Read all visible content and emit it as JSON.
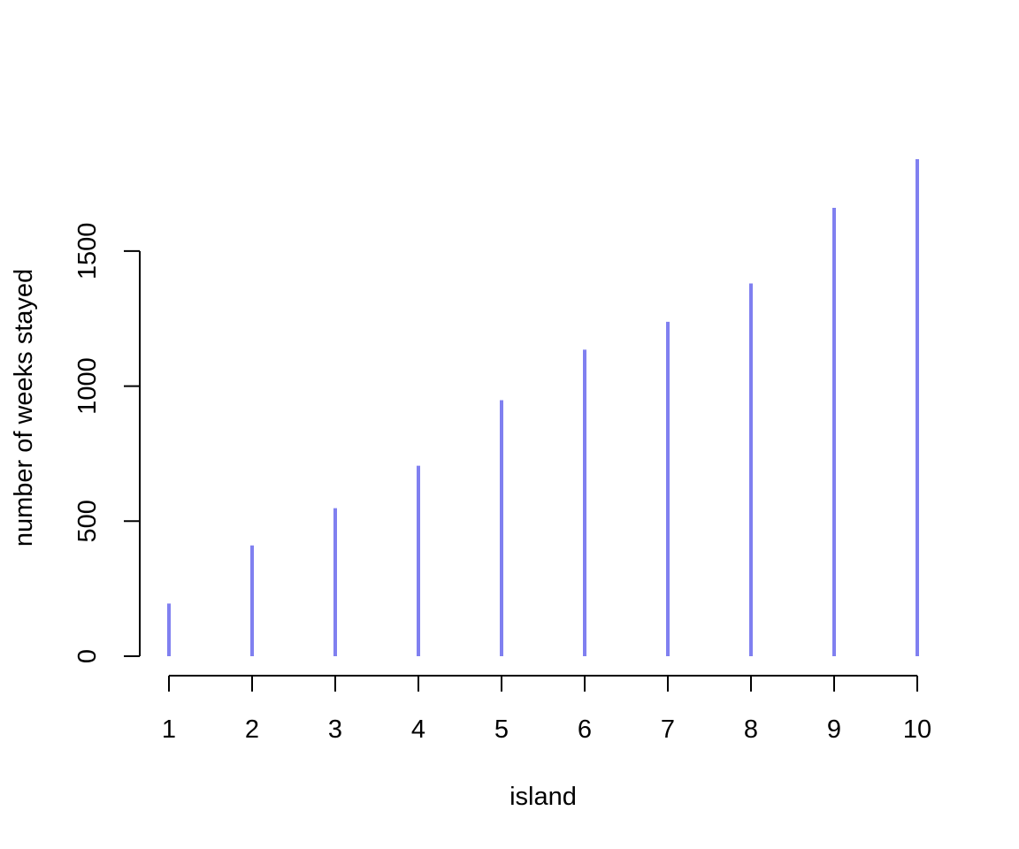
{
  "chart_data": {
    "type": "bar",
    "style": "vertical spikes (type='h')",
    "x": [
      1,
      2,
      3,
      4,
      5,
      6,
      7,
      8,
      9,
      10
    ],
    "values": [
      195,
      410,
      548,
      705,
      948,
      1135,
      1238,
      1380,
      1660,
      1840
    ],
    "xlabel": "island",
    "ylabel": "number of weeks stayed",
    "xticks": [
      "1",
      "2",
      "3",
      "4",
      "5",
      "6",
      "7",
      "8",
      "9",
      "10"
    ],
    "yticks": [
      0,
      500,
      1000,
      1500
    ],
    "ytick_labels": [
      "0",
      "500",
      "1000",
      "1500"
    ],
    "xlim": [
      1,
      10
    ],
    "ylim": [
      0,
      1840
    ],
    "grid": false,
    "color": "#8080F0"
  }
}
